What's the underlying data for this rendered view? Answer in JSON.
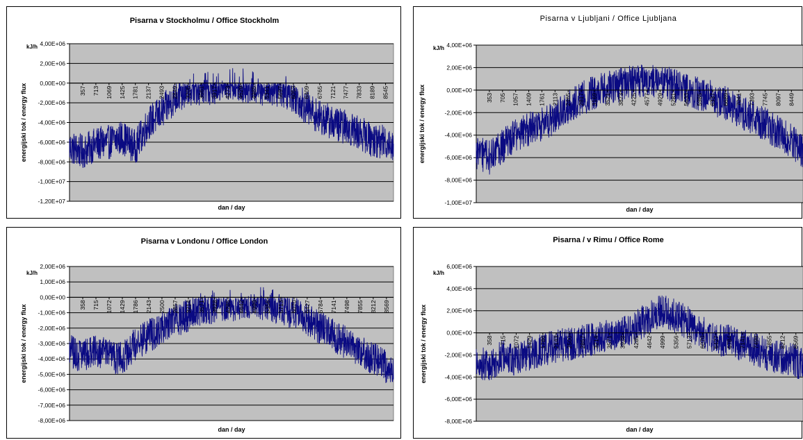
{
  "chart_data": [
    {
      "type": "line",
      "title": "Pisarna v Stockholmu / Office Stockholm",
      "xlabel": "dan / day",
      "ylabel": "energijski tok / energy flux",
      "unit": "kJ/h",
      "ylim": [
        -12000000,
        4000000
      ],
      "xlim": [
        1,
        8760
      ],
      "grid": true,
      "legend": "none",
      "yticks": [
        "4,00E+06",
        "2,00E+06",
        "0,00E+00",
        "-2,00E+06",
        "-4,00E+06",
        "-6,00E+06",
        "-8,00E+06",
        "-1,00E+07",
        "-1,20E+07"
      ],
      "xticks": [
        "357",
        "713",
        "1069",
        "1425",
        "1781",
        "2137",
        "2493",
        "2849",
        "3205",
        "3561",
        "3917",
        "4273",
        "4629",
        "4985",
        "5341",
        "5697",
        "6053",
        "6409",
        "6765",
        "7121",
        "7477",
        "7833",
        "8189",
        "8545"
      ],
      "color": "#0a0a82",
      "series": [
        {
          "x": [
            1,
            357,
            713,
            1069,
            1425,
            1781,
            2137,
            2493,
            2849,
            3205,
            3561,
            3917,
            4273,
            4629,
            4985,
            5341,
            5697,
            6053,
            6409,
            6765,
            7121,
            7477,
            7833,
            8189,
            8545,
            8760
          ],
          "y": [
            -6500000,
            -7000000,
            -6200000,
            -6000000,
            -5500000,
            -6500000,
            -4000000,
            -3000000,
            -1500000,
            -500000,
            -600000,
            -400000,
            -100000,
            -200000,
            -400000,
            -600000,
            -700000,
            -1200000,
            -2500000,
            -3500000,
            -4000000,
            -4500000,
            -5000000,
            -5800000,
            -6000000,
            -6200000
          ]
        }
      ]
    },
    {
      "type": "line",
      "title": "Pisarna v Ljubljani / Office Ljubljana",
      "xlabel": "dan / day",
      "ylabel": "energijski tok / energy flux",
      "unit": "kJ/h",
      "ylim": [
        -10000000,
        4000000
      ],
      "xlim": [
        1,
        8760
      ],
      "grid": true,
      "legend": "none",
      "yticks": [
        "4,00E+06",
        "2,00E+06",
        "0,00E+00",
        "-2,00E+06",
        "-4,00E+06",
        "-6,00E+06",
        "-8,00E+06",
        "-1,00E+07"
      ],
      "xticks": [
        "353",
        "705",
        "1057",
        "1409",
        "1761",
        "2113",
        "2465",
        "2817",
        "3169",
        "3521",
        "3873",
        "4225",
        "4577",
        "4929",
        "5281",
        "5633",
        "5985",
        "6337",
        "6689",
        "7041",
        "7393",
        "7745",
        "8097",
        "8449"
      ],
      "color": "#0a0a82",
      "series": [
        {
          "x": [
            1,
            353,
            705,
            1057,
            1409,
            1761,
            2113,
            2465,
            2817,
            3169,
            3521,
            3873,
            4225,
            4577,
            4929,
            5281,
            5633,
            5985,
            6337,
            6689,
            7041,
            7393,
            7745,
            8097,
            8449,
            8760
          ],
          "y": [
            -5500000,
            -6000000,
            -5000000,
            -4000000,
            -3500000,
            -3000000,
            -2500000,
            -1500000,
            -800000,
            -200000,
            200000,
            500000,
            800000,
            1000000,
            800000,
            400000,
            0,
            -300000,
            -700000,
            -1200000,
            -1800000,
            -2500000,
            -3000000,
            -3800000,
            -4500000,
            -5500000
          ]
        }
      ]
    },
    {
      "type": "line",
      "title": "Pisarna v Londonu / Office London",
      "xlabel": "dan / day",
      "ylabel": "energijski tok / energy flux",
      "unit": "kJ/h",
      "ylim": [
        -8000000,
        2000000
      ],
      "xlim": [
        1,
        8760
      ],
      "grid": true,
      "legend": "none",
      "yticks": [
        "2,00E+06",
        "1,00E+06",
        "0,00E+00",
        "-1,00E+06",
        "-2,00E+06",
        "-3,00E+06",
        "-4,00E+06",
        "-5,00E+06",
        "-6,00E+06",
        "-7,00E+06",
        "-8,00E+06"
      ],
      "xticks": [
        "358",
        "715",
        "1072",
        "1429",
        "1786",
        "2143",
        "2500",
        "2857",
        "3214",
        "3571",
        "3928",
        "4285",
        "4642",
        "4999",
        "5356",
        "5713",
        "6070",
        "6427",
        "6784",
        "7141",
        "7498",
        "7855",
        "8212",
        "8569"
      ],
      "color": "#0a0a82",
      "series": [
        {
          "x": [
            1,
            358,
            715,
            1072,
            1429,
            1786,
            2143,
            2500,
            2857,
            3214,
            3571,
            3928,
            4285,
            4642,
            4999,
            5356,
            5713,
            6070,
            6427,
            6784,
            7141,
            7498,
            7855,
            8212,
            8569,
            8760
          ],
          "y": [
            -3500000,
            -3800000,
            -3500000,
            -3800000,
            -4000000,
            -3000000,
            -2500000,
            -2000000,
            -1500000,
            -1200000,
            -800000,
            -600000,
            -500000,
            -400000,
            -300000,
            -500000,
            -700000,
            -1000000,
            -1500000,
            -2000000,
            -2500000,
            -3000000,
            -3500000,
            -4000000,
            -4500000,
            -5000000
          ]
        }
      ]
    },
    {
      "type": "line",
      "title": "Pisarna / v Rimu / Office Rome",
      "xlabel": "dan / day",
      "ylabel": "energijski tok / energy flux",
      "unit": "kJ/h",
      "ylim": [
        -8000000,
        6000000
      ],
      "xlim": [
        1,
        8760
      ],
      "grid": true,
      "legend": "none",
      "yticks": [
        "6,00E+06",
        "4,00E+06",
        "2,00E+06",
        "0,00E+00",
        "-2,00E+06",
        "-4,00E+06",
        "-6,00E+06",
        "-8,00E+06"
      ],
      "xticks": [
        "358",
        "715",
        "1072",
        "1429",
        "1786",
        "2143",
        "2500",
        "2857",
        "3214",
        "3571",
        "3928",
        "4285",
        "4642",
        "4999",
        "5356",
        "5713",
        "6070",
        "6427",
        "6784",
        "7141",
        "7498",
        "7855",
        "8212",
        "8569"
      ],
      "color": "#0a0a82",
      "series": [
        {
          "x": [
            1,
            358,
            715,
            1072,
            1429,
            1786,
            2143,
            2500,
            2857,
            3214,
            3571,
            3928,
            4285,
            4642,
            4999,
            5356,
            5713,
            6070,
            6427,
            6784,
            7141,
            7498,
            7855,
            8212,
            8569,
            8760
          ],
          "y": [
            -2500000,
            -3000000,
            -2000000,
            -2500000,
            -2000000,
            -1500000,
            -1200000,
            -1000000,
            -800000,
            -500000,
            -200000,
            0,
            500000,
            1500000,
            2000000,
            1500000,
            800000,
            0,
            -500000,
            -800000,
            -1200000,
            -1500000,
            -2000000,
            -2200000,
            -2500000,
            -3000000
          ]
        }
      ]
    }
  ]
}
